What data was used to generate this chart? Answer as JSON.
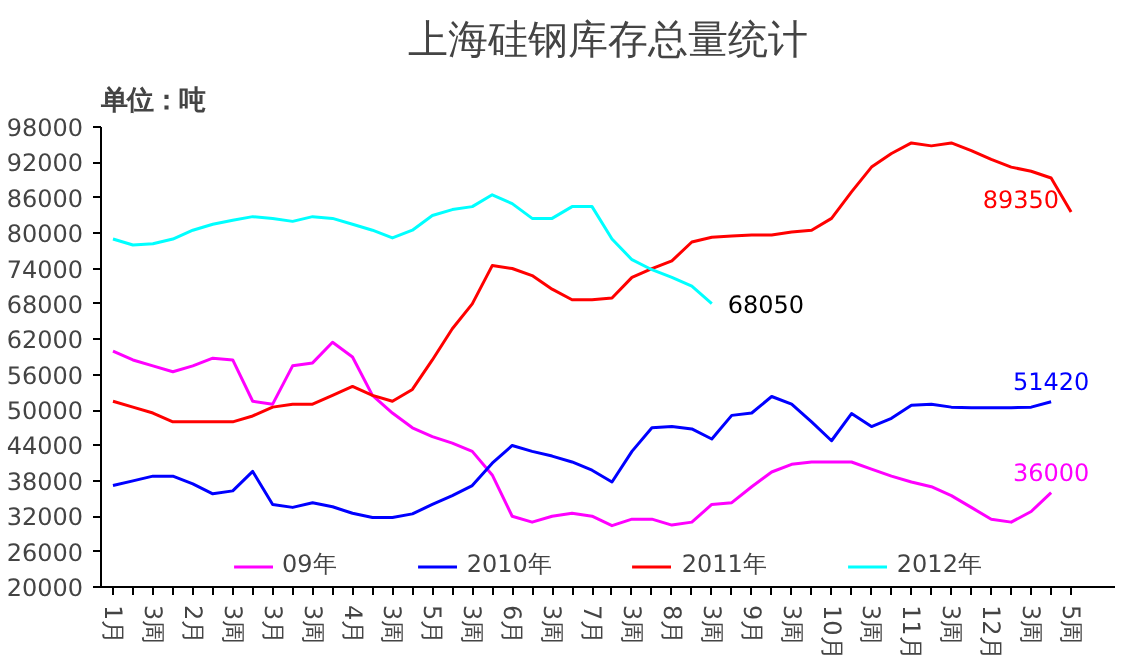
{
  "chart_data": {
    "type": "line",
    "title": "上海硅钢库存总量统计",
    "ylabel": "单位：吨",
    "categories": [
      "1月",
      null,
      "3周",
      null,
      "2月",
      null,
      "3周",
      null,
      "3月",
      null,
      "3周",
      null,
      "4月",
      null,
      "3周",
      null,
      "5月",
      null,
      "3周",
      null,
      "6月",
      null,
      "3周",
      null,
      "7月",
      null,
      "3周",
      null,
      "8月",
      null,
      "3周",
      null,
      "9月",
      null,
      "3周",
      null,
      "10月",
      null,
      "3周",
      null,
      "11月",
      null,
      "3周",
      null,
      "12月",
      null,
      "3周",
      null,
      "5周"
    ],
    "ylim": [
      20000,
      98000
    ],
    "yticks": [
      20000,
      26000,
      32000,
      38000,
      44000,
      50000,
      56000,
      62000,
      68000,
      74000,
      80000,
      86000,
      92000,
      98000
    ],
    "grid": false,
    "legend": "bottom",
    "marker": "none",
    "line_style": "solid",
    "series": [
      {
        "name": "09年",
        "color": "#ff00ff",
        "values": [
          60000,
          58500,
          57500,
          56500,
          57500,
          58800,
          58500,
          51500,
          51000,
          57500,
          58000,
          61500,
          59000,
          52500,
          49500,
          47000,
          45500,
          44400,
          43000,
          39000,
          32000,
          31000,
          32000,
          32500,
          32000,
          30400,
          31500,
          31500,
          30500,
          31000,
          34000,
          34300,
          37000,
          39500,
          40800,
          41200,
          41200,
          41200,
          40000,
          38800,
          37800,
          37000,
          35500,
          33500,
          31500,
          31000,
          32800,
          36000,
          null
        ],
        "value_labels": [
          null,
          null,
          null,
          null,
          null,
          null,
          null,
          null,
          null,
          null,
          null,
          null,
          null,
          null,
          null,
          null,
          null,
          null,
          null,
          null,
          null,
          null,
          null,
          null,
          null,
          null,
          null,
          null,
          null,
          null,
          null,
          null,
          null,
          null,
          null,
          null,
          null,
          null,
          null,
          null,
          null,
          null,
          null,
          null,
          null,
          null,
          null,
          "36000",
          null
        ]
      },
      {
        "name": "2010年",
        "color": "#0000ff",
        "values": [
          37200,
          38000,
          38800,
          38800,
          37500,
          35800,
          36300,
          39600,
          34000,
          33500,
          34300,
          33600,
          32500,
          31800,
          31800,
          32400,
          34000,
          35500,
          37200,
          41000,
          44000,
          43000,
          42200,
          41200,
          39800,
          37800,
          43000,
          47000,
          47200,
          46800,
          45100,
          49100,
          49500,
          52300,
          51000,
          48000,
          44800,
          49400,
          47200,
          48600,
          50800,
          51000,
          50500,
          50400,
          50400,
          50400,
          50500,
          51420,
          null
        ],
        "value_labels": [
          null,
          null,
          null,
          null,
          null,
          null,
          null,
          null,
          null,
          null,
          null,
          null,
          null,
          null,
          null,
          null,
          null,
          null,
          null,
          null,
          null,
          null,
          null,
          null,
          null,
          null,
          null,
          null,
          null,
          null,
          null,
          null,
          null,
          null,
          null,
          null,
          null,
          null,
          null,
          null,
          null,
          null,
          null,
          null,
          null,
          null,
          null,
          "51420",
          null
        ]
      },
      {
        "name": "2011年",
        "color": "#ff0000",
        "values": [
          51500,
          50500,
          49500,
          48000,
          48000,
          48000,
          48000,
          49000,
          50500,
          51000,
          51000,
          52500,
          54000,
          52500,
          51500,
          53500,
          58500,
          63800,
          68000,
          74500,
          74000,
          72800,
          70500,
          68700,
          68700,
          69000,
          72500,
          74000,
          75300,
          78500,
          79300,
          79500,
          79700,
          79700,
          80200,
          80500,
          82500,
          87000,
          91200,
          93500,
          95300,
          94800,
          95300,
          94000,
          92500,
          91200,
          90500,
          89350,
          83600
        ],
        "value_labels": [
          null,
          null,
          null,
          null,
          null,
          null,
          null,
          null,
          null,
          null,
          null,
          null,
          null,
          null,
          null,
          null,
          null,
          null,
          null,
          null,
          null,
          null,
          null,
          null,
          null,
          null,
          null,
          null,
          null,
          null,
          null,
          null,
          null,
          null,
          null,
          null,
          null,
          null,
          null,
          null,
          null,
          null,
          null,
          null,
          null,
          null,
          null,
          "89350",
          null
        ]
      },
      {
        "name": "2012年",
        "color": "#00ffff",
        "values": [
          79000,
          78000,
          78200,
          79000,
          80500,
          81500,
          82200,
          82800,
          82500,
          82000,
          82800,
          82500,
          81500,
          80500,
          79200,
          80500,
          83000,
          84000,
          84500,
          86500,
          85000,
          82500,
          82500,
          84500,
          84500,
          79000,
          75500,
          73800,
          72500,
          71000,
          68050,
          null,
          null,
          null,
          null,
          null,
          null,
          null,
          null,
          null,
          null,
          null,
          null,
          null,
          null,
          null,
          null,
          null,
          null
        ],
        "value_labels": [
          null,
          null,
          null,
          null,
          null,
          null,
          null,
          null,
          null,
          null,
          null,
          null,
          null,
          null,
          null,
          null,
          null,
          null,
          null,
          null,
          null,
          null,
          null,
          null,
          null,
          null,
          null,
          null,
          null,
          null,
          "68050",
          null,
          null,
          null,
          null,
          null,
          null,
          null,
          null,
          null,
          null,
          null,
          null,
          null,
          null,
          null,
          null,
          null,
          null
        ]
      }
    ]
  }
}
